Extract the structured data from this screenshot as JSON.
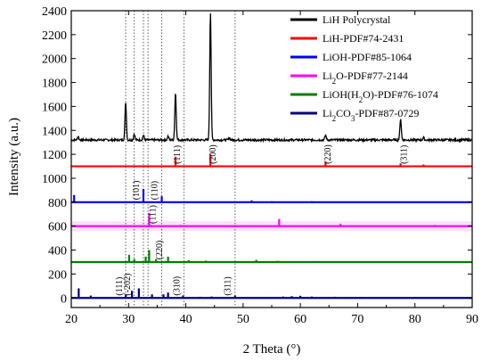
{
  "chart_data": {
    "type": "line",
    "xlabel": "2 Theta (°)",
    "ylabel": "Intensity (a.u.)",
    "xlim": [
      20,
      90
    ],
    "ylim": [
      -80,
      2400
    ],
    "x_ticks": [
      "20",
      "30",
      "40",
      "50",
      "60",
      "70",
      "80",
      "90"
    ],
    "x_tick_values": [
      20,
      30,
      40,
      50,
      60,
      70,
      80,
      90
    ],
    "y_ticks": [
      "0",
      "200",
      "400",
      "600",
      "800",
      "1000",
      "1200",
      "1400",
      "1600",
      "1800",
      "2000",
      "2200",
      "2400"
    ],
    "y_tick_values": [
      0,
      200,
      400,
      600,
      800,
      1000,
      1200,
      1400,
      1600,
      1800,
      2000,
      2200,
      2400
    ],
    "legend_position": "top-right",
    "vertical_dotted_lines": [
      29.5,
      31.0,
      32.6,
      33.4,
      35.8,
      39.7,
      48.6
    ],
    "series": [
      {
        "name": "LiH Polycrystal",
        "legend_html": "LiH Polycrystal",
        "color": "#000000",
        "kind": "pattern",
        "baseline": 1320,
        "peaks": [
          [
            21.2,
            30
          ],
          [
            29.5,
            320
          ],
          [
            31.0,
            50
          ],
          [
            32.6,
            40
          ],
          [
            36.9,
            30
          ],
          [
            38.2,
            400
          ],
          [
            44.3,
            1080
          ],
          [
            47.6,
            20
          ],
          [
            64.4,
            40
          ],
          [
            77.5,
            180
          ],
          [
            81.5,
            20
          ]
        ]
      },
      {
        "name": "LiH-PDF#74-2431",
        "legend_html": "LiH-PDF#74-2431",
        "color": "#ff0000",
        "kind": "sticks",
        "baseline": 1100,
        "peaks": [
          [
            38.2,
            80
          ],
          [
            44.3,
            100
          ],
          [
            64.4,
            40
          ],
          [
            77.5,
            25
          ],
          [
            81.5,
            15
          ]
        ]
      },
      {
        "name": "LiOH-PDF#85-1064",
        "legend_html": "LiOH-PDF#85-1064",
        "color": "#0000ff",
        "kind": "sticks",
        "baseline": 800,
        "peaks": [
          [
            20.5,
            60
          ],
          [
            32.6,
            110
          ],
          [
            35.8,
            50
          ],
          [
            51.5,
            15
          ],
          [
            55.0,
            8
          ],
          [
            62.0,
            8
          ],
          [
            71.0,
            6
          ]
        ]
      },
      {
        "name": "Li2O-PDF#77-2144",
        "legend_html": "Li<tspan baseline-shift=\"sub\" font-size=\"9\">2</tspan>O-PDF#77-2144",
        "color": "#ff00ff",
        "kind": "sticks",
        "baseline": 600,
        "peaks": [
          [
            33.6,
            110
          ],
          [
            39.1,
            10
          ],
          [
            56.3,
            60
          ],
          [
            67.0,
            20
          ],
          [
            83.5,
            10
          ]
        ]
      },
      {
        "name": "LiOH(H2O)-PDF#76-1074",
        "legend_html": "LiOH(H<tspan baseline-shift=\"sub\" font-size=\"9\">2</tspan><tspan baseline-shift=\"0\">O)-PDF#76-1074</tspan>",
        "color": "#008000",
        "kind": "sticks",
        "baseline": 300,
        "peaks": [
          [
            30.1,
            60
          ],
          [
            31.0,
            25
          ],
          [
            33.0,
            45
          ],
          [
            33.6,
            100
          ],
          [
            34.8,
            25
          ],
          [
            36.9,
            45
          ],
          [
            40.5,
            15
          ],
          [
            43.5,
            12
          ],
          [
            52.3,
            18
          ],
          [
            56.0,
            10
          ],
          [
            63.0,
            8
          ],
          [
            70.0,
            6
          ]
        ]
      },
      {
        "name": "Li2CO3-PDF#87-0729",
        "legend_html": "Li<tspan baseline-shift=\"sub\" font-size=\"9\">2</tspan><tspan baseline-shift=\"0\">CO</tspan><tspan baseline-shift=\"sub\" font-size=\"9\">3</tspan><tspan baseline-shift=\"0\">-PDF#87-0729</tspan>",
        "color": "#000080",
        "kind": "sticks",
        "baseline": 0,
        "peaks": [
          [
            21.3,
            80
          ],
          [
            23.4,
            20
          ],
          [
            29.5,
            25
          ],
          [
            30.6,
            60
          ],
          [
            31.8,
            80
          ],
          [
            34.1,
            30
          ],
          [
            36.1,
            30
          ],
          [
            36.9,
            45
          ],
          [
            39.5,
            20
          ],
          [
            42.5,
            10
          ],
          [
            44.5,
            12
          ],
          [
            48.6,
            20
          ],
          [
            57.0,
            12
          ],
          [
            58.5,
            15
          ],
          [
            60.0,
            18
          ],
          [
            62.0,
            12
          ],
          [
            66.0,
            10
          ],
          [
            70.5,
            8
          ],
          [
            74.0,
            6
          ],
          [
            80.0,
            6
          ]
        ]
      }
    ],
    "peak_labels": [
      {
        "text": "(111)",
        "x": 39.0,
        "y": 1120
      },
      {
        "text": "(200)",
        "x": 45.2,
        "y": 1120
      },
      {
        "text": "(220)",
        "x": 65.3,
        "y": 1120
      },
      {
        "text": "(311)",
        "x": 78.6,
        "y": 1120
      },
      {
        "text": "(101)",
        "x": 31.8,
        "y": 820
      },
      {
        "text": "(110)",
        "x": 35.0,
        "y": 820
      },
      {
        "text": "(111)",
        "x": 34.7,
        "y": 620
      },
      {
        "text": "(220)",
        "x": 35.9,
        "y": 320
      },
      {
        "text": "(111)",
        "x": 28.9,
        "y": 20
      },
      {
        "text": "(-202)",
        "x": 30.3,
        "y": 20
      },
      {
        "text": "(310)",
        "x": 38.9,
        "y": 20
      },
      {
        "text": "(311)",
        "x": 47.8,
        "y": 20
      }
    ]
  }
}
